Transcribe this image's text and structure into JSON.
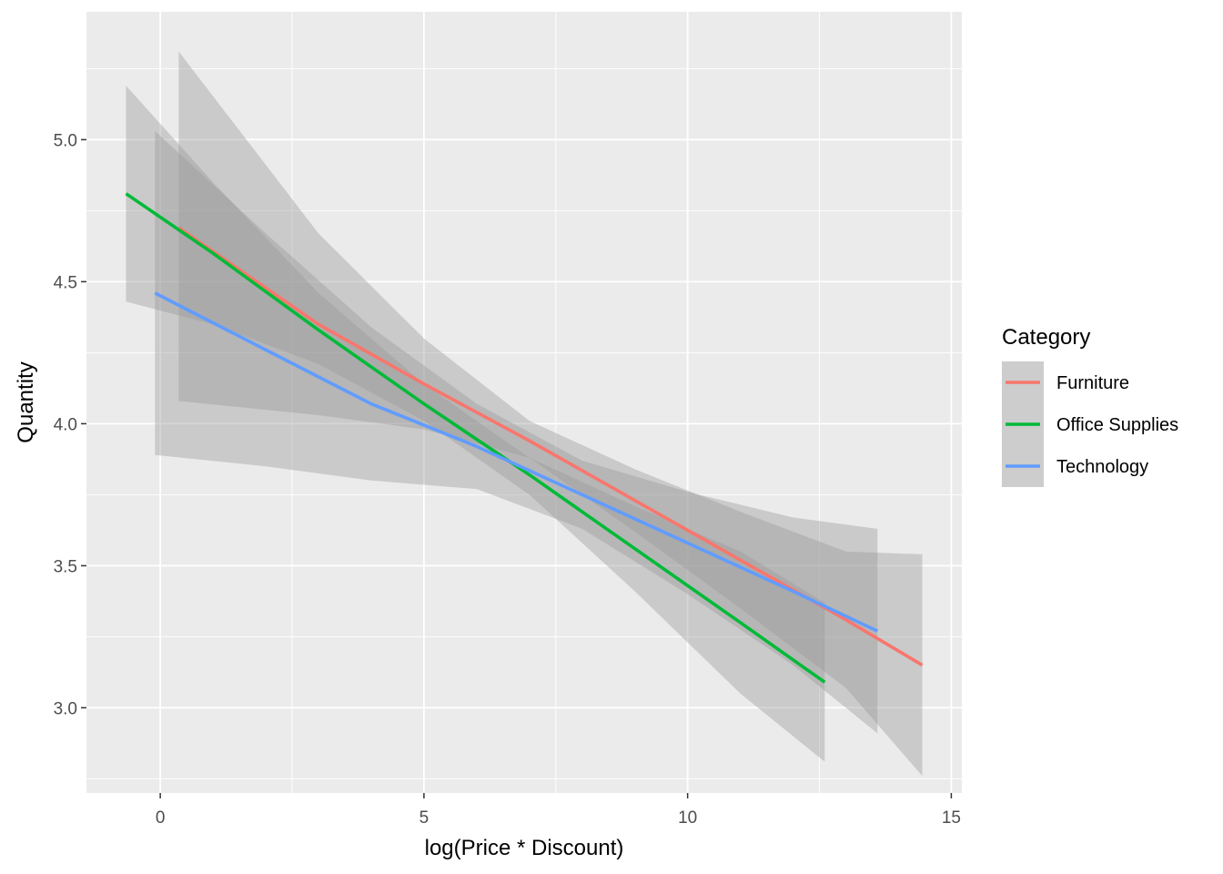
{
  "chart_data": {
    "type": "line",
    "subtype": "linear-regression-with-confidence-band",
    "title": "",
    "xlabel": "log(Price * Discount)",
    "ylabel": "Quantity",
    "xlim": [
      -1.4,
      15.2
    ],
    "ylim": [
      2.7,
      5.45
    ],
    "x_ticks": [
      0,
      5,
      10,
      15
    ],
    "x_tick_labels": [
      "0",
      "5",
      "10",
      "15"
    ],
    "y_ticks": [
      3.0,
      3.5,
      4.0,
      4.5,
      5.0
    ],
    "y_tick_labels": [
      "3.0",
      "3.5",
      "4.0",
      "4.5",
      "5.0"
    ],
    "grid": true,
    "legend": {
      "title": "Category",
      "position": "right"
    },
    "series": [
      {
        "name": "Furniture",
        "color": "#F8766D",
        "x": [
          0.35,
          3,
          5,
          7,
          9,
          11,
          13,
          14.45
        ],
        "y": [
          4.69,
          4.35,
          4.14,
          3.94,
          3.73,
          3.52,
          3.31,
          3.15
        ],
        "lower": [
          4.08,
          4.03,
          3.98,
          3.88,
          3.62,
          3.35,
          3.07,
          2.76
        ],
        "upper": [
          5.31,
          4.67,
          4.3,
          4.01,
          3.84,
          3.69,
          3.55,
          3.54
        ]
      },
      {
        "name": "Office Supplies",
        "color": "#00BA38",
        "x": [
          -0.65,
          1,
          3,
          5,
          7,
          9,
          11,
          12.6
        ],
        "y": [
          4.81,
          4.6,
          4.33,
          4.07,
          3.82,
          3.56,
          3.3,
          3.09
        ],
        "lower": [
          4.43,
          4.35,
          4.21,
          4.01,
          3.75,
          3.41,
          3.05,
          2.81
        ],
        "upper": [
          5.19,
          4.85,
          4.46,
          4.14,
          3.88,
          3.71,
          3.55,
          3.37
        ]
      },
      {
        "name": "Technology",
        "color": "#619CFF",
        "x": [
          -0.1,
          2,
          4,
          6,
          8,
          10,
          12,
          13.6
        ],
        "y": [
          4.46,
          4.26,
          4.07,
          3.92,
          3.75,
          3.58,
          3.41,
          3.27
        ],
        "lower": [
          3.89,
          3.85,
          3.8,
          3.77,
          3.63,
          3.4,
          3.15,
          2.91
        ],
        "upper": [
          5.03,
          4.67,
          4.34,
          4.07,
          3.87,
          3.76,
          3.67,
          3.63
        ]
      }
    ],
    "band_color": "#999999"
  }
}
